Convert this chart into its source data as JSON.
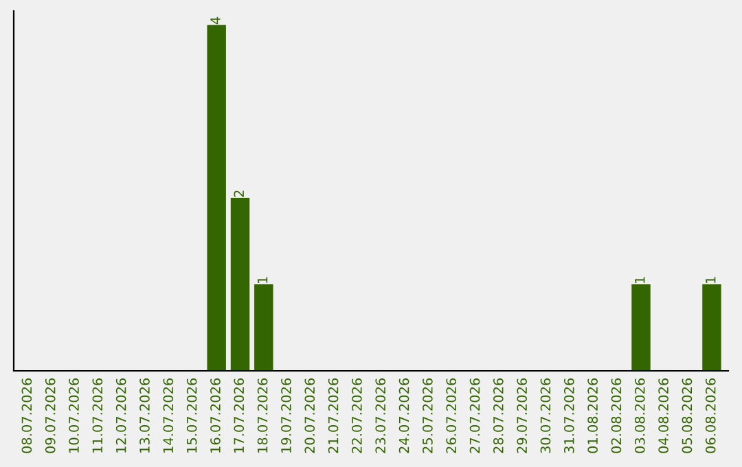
{
  "chart_data": {
    "type": "bar",
    "categories": [
      "08.07.2026",
      "09.07.2026",
      "10.07.2026",
      "11.07.2026",
      "12.07.2026",
      "13.07.2026",
      "14.07.2026",
      "15.07.2026",
      "16.07.2026",
      "17.07.2026",
      "18.07.2026",
      "19.07.2026",
      "20.07.2026",
      "21.07.2026",
      "22.07.2026",
      "23.07.2026",
      "24.07.2026",
      "25.07.2026",
      "26.07.2026",
      "27.07.2026",
      "28.07.2026",
      "29.07.2026",
      "30.07.2026",
      "31.07.2026",
      "01.08.2026",
      "02.08.2026",
      "03.08.2026",
      "04.08.2026",
      "05.08.2026",
      "06.08.2026"
    ],
    "values": [
      0,
      0,
      0,
      0,
      0,
      0,
      0,
      0,
      4,
      2,
      1,
      0,
      0,
      0,
      0,
      0,
      0,
      0,
      0,
      0,
      0,
      0,
      0,
      0,
      0,
      0,
      1,
      0,
      0,
      1
    ],
    "value_labels": [
      null,
      null,
      null,
      null,
      null,
      null,
      null,
      null,
      "4",
      "2",
      "1",
      null,
      null,
      null,
      null,
      null,
      null,
      null,
      null,
      null,
      null,
      null,
      null,
      null,
      null,
      null,
      "1",
      null,
      null,
      "1"
    ],
    "color": "#336600",
    "grid": false,
    "tick_labels": "x"
  }
}
